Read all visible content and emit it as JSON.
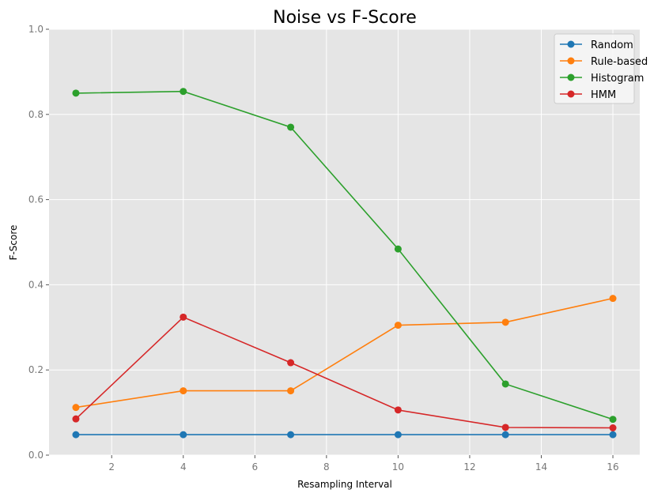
{
  "chart_data": {
    "type": "line",
    "title": "Noise vs F-Score",
    "xlabel": "Resampling Interval",
    "ylabel": "F-Score",
    "x": [
      1,
      4,
      7,
      10,
      13,
      16
    ],
    "xlim": [
      0.25,
      16.75
    ],
    "ylim": [
      0.0,
      1.0
    ],
    "xticks": [
      2,
      4,
      6,
      8,
      10,
      12,
      14,
      16
    ],
    "yticks": [
      0.0,
      0.2,
      0.4,
      0.6,
      0.8,
      1.0
    ],
    "xtick_labels": [
      "2",
      "4",
      "6",
      "8",
      "10",
      "12",
      "14",
      "16"
    ],
    "ytick_labels": [
      "0.0",
      "0.2",
      "0.4",
      "0.6",
      "0.8",
      "1.0"
    ],
    "grid": true,
    "legend_position": "top-right",
    "series": [
      {
        "name": "Random",
        "color": "#1f77b4",
        "values": [
          0.048,
          0.048,
          0.048,
          0.048,
          0.048,
          0.048
        ]
      },
      {
        "name": "Rule-based",
        "color": "#ff7f0e",
        "values": [
          0.112,
          0.151,
          0.151,
          0.305,
          0.312,
          0.368
        ]
      },
      {
        "name": "Histogram",
        "color": "#2ca02c",
        "values": [
          0.85,
          0.854,
          0.77,
          0.484,
          0.167,
          0.084
        ]
      },
      {
        "name": "HMM",
        "color": "#d62728",
        "values": [
          0.085,
          0.324,
          0.217,
          0.106,
          0.065,
          0.064
        ]
      }
    ]
  }
}
